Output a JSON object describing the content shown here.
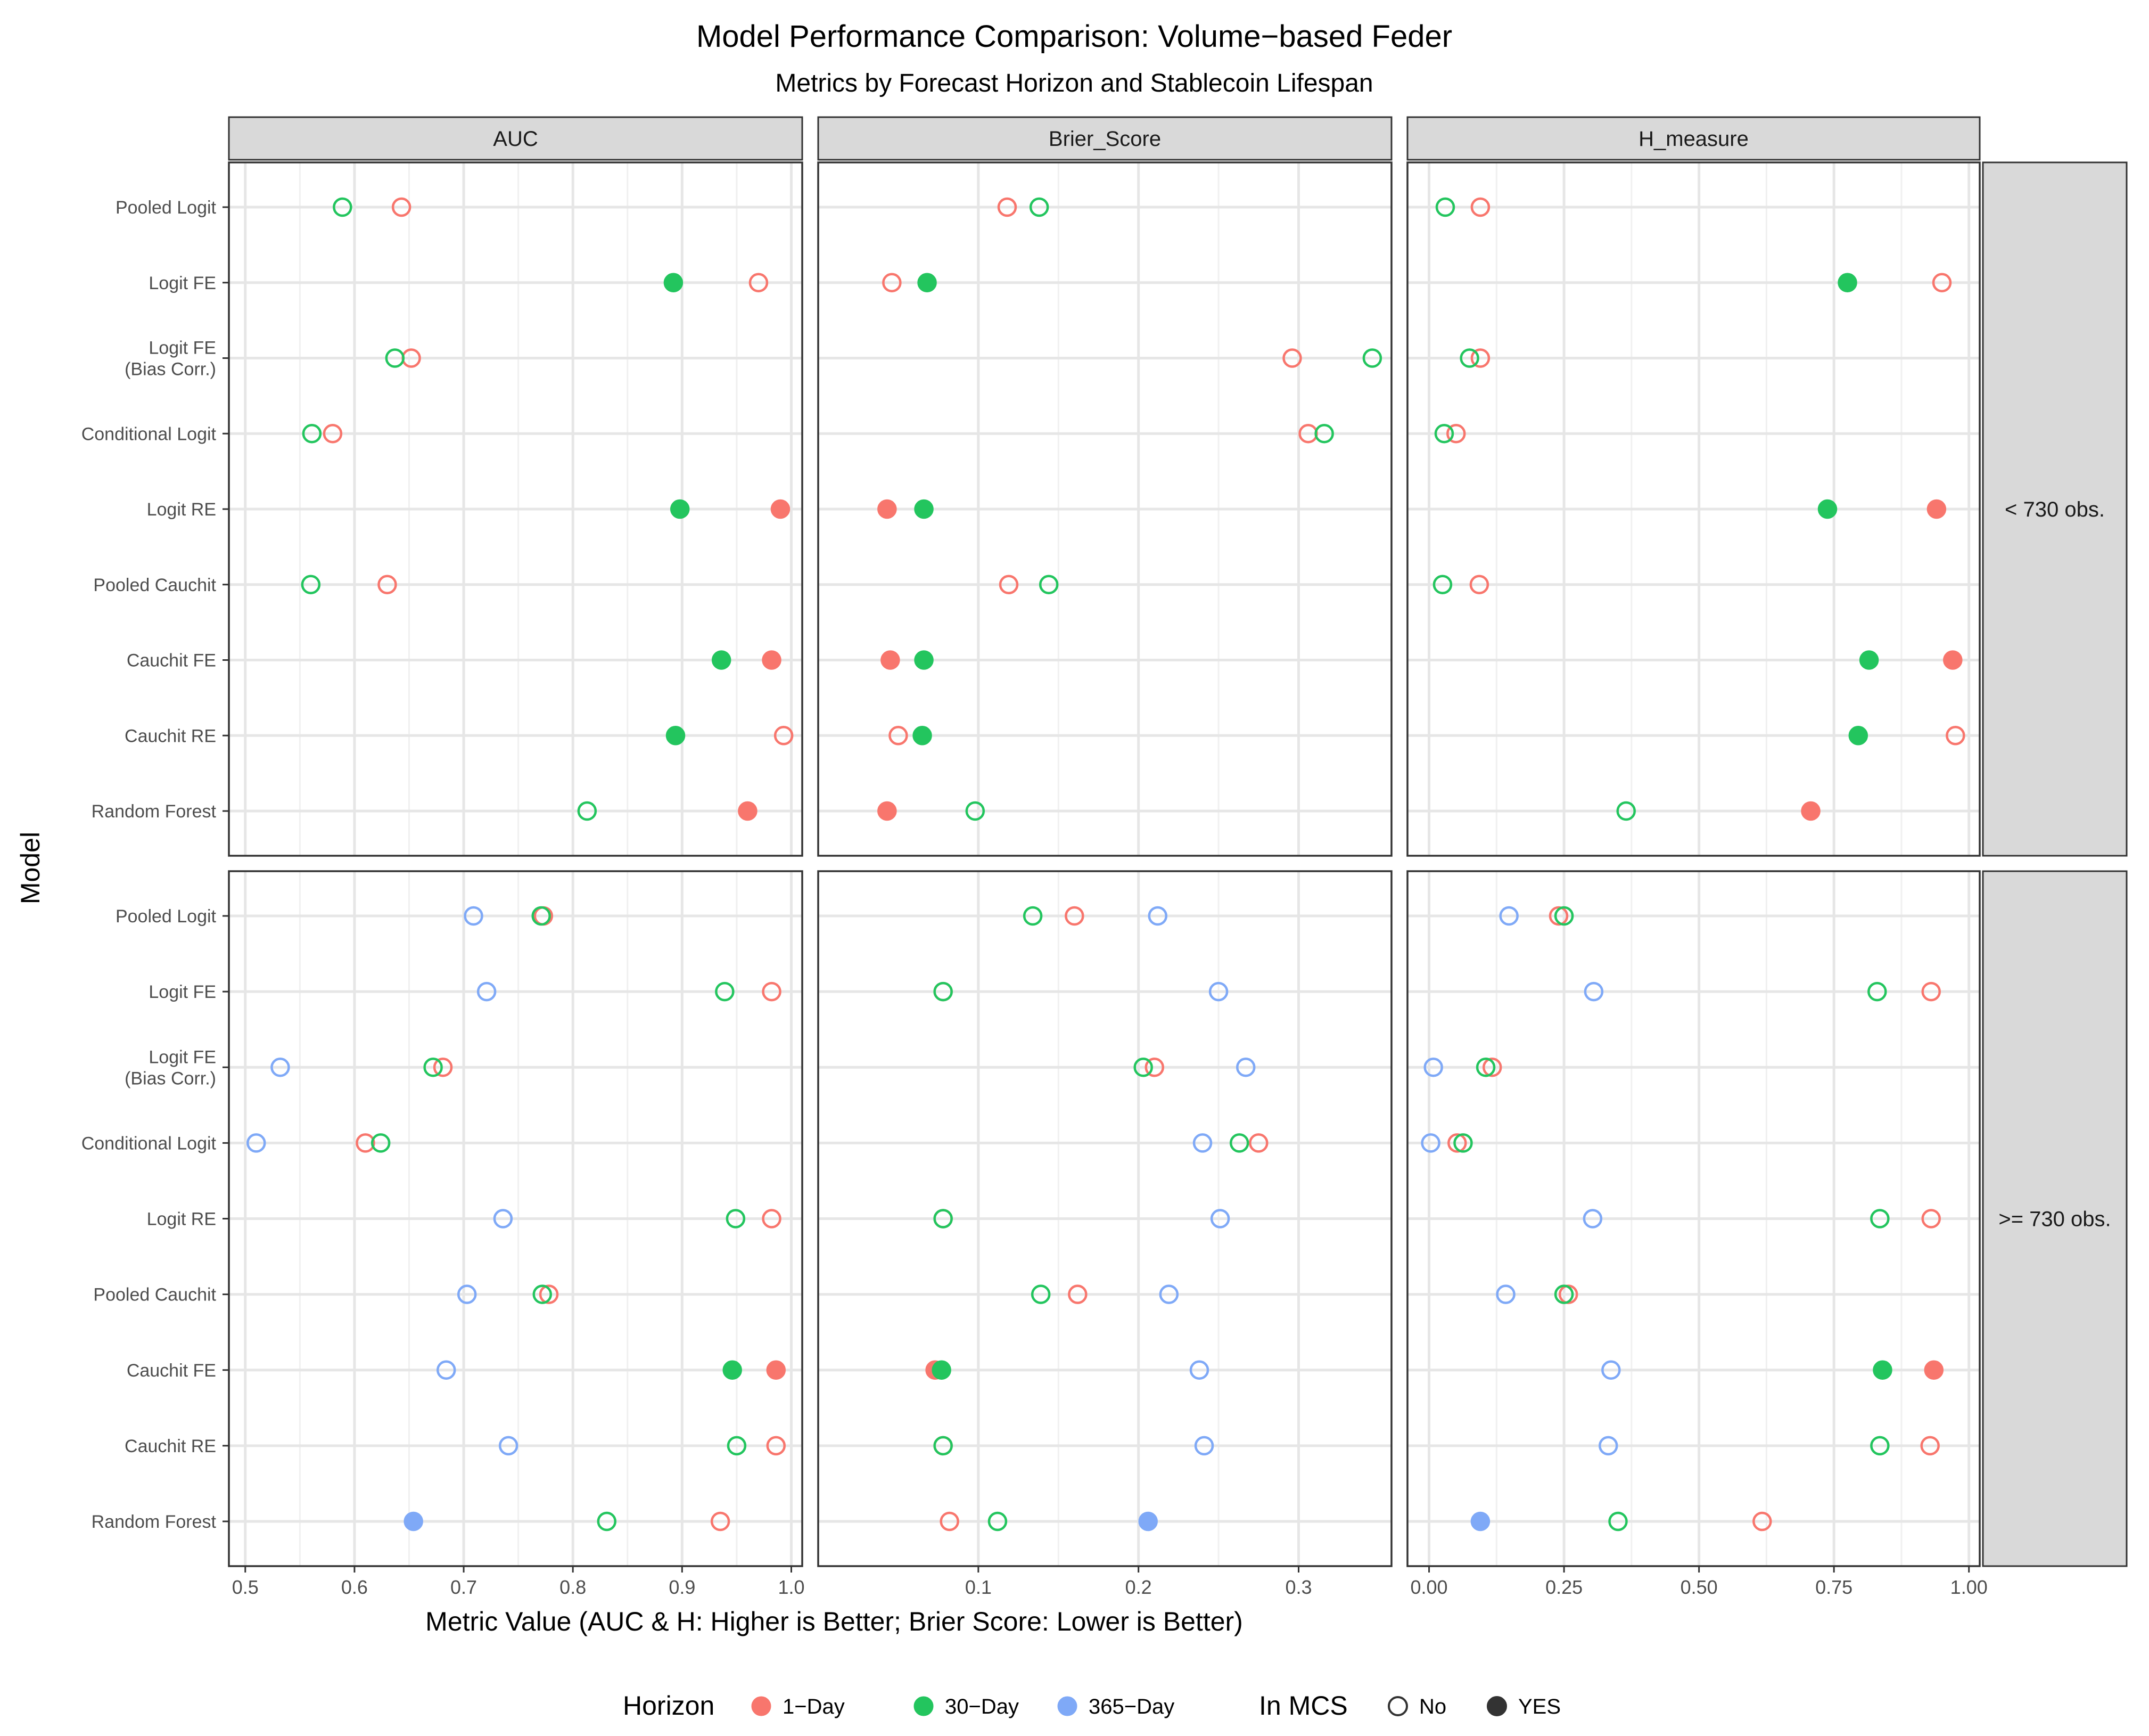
{
  "chart_data": {
    "type": "scatter",
    "title": "Model Performance Comparison: Volume−based Feder",
    "subtitle": "Metrics by Forecast Horizon and Stablecoin Lifespan",
    "xlabel": "Metric Value (AUC & H: Higher is Better; Brier Score: Lower is Better)",
    "ylabel": "Model",
    "grid": true,
    "legend_position": "bottom",
    "models": [
      "Pooled Logit",
      "Logit FE",
      "Logit FE\n(Bias Corr.)",
      "Conditional Logit",
      "Logit RE",
      "Pooled Cauchit",
      "Cauchit FE",
      "Cauchit RE",
      "Random Forest"
    ],
    "columns": [
      {
        "key": "auc",
        "label": "AUC",
        "xlim": [
          0.485,
          1.01
        ],
        "ticks": [
          0.5,
          0.6,
          0.7,
          0.8,
          0.9,
          1.0
        ],
        "tick_labels": [
          "0.5",
          "0.6",
          "0.7",
          "0.8",
          "0.9",
          "1.0"
        ]
      },
      {
        "key": "brier",
        "label": "Brier_Score",
        "xlim": [
          0.0,
          0.358
        ],
        "ticks": [
          0.1,
          0.2,
          0.3
        ],
        "tick_labels": [
          "0.1",
          "0.2",
          "0.3"
        ]
      },
      {
        "key": "h",
        "label": "H_measure",
        "xlim": [
          -0.04,
          1.02
        ],
        "ticks": [
          0.0,
          0.25,
          0.5,
          0.75,
          1.0
        ],
        "tick_labels": [
          "0.00",
          "0.25",
          "0.50",
          "0.75",
          "1.00"
        ]
      }
    ],
    "rows": [
      {
        "key": "short",
        "label": "< 730 obs."
      },
      {
        "key": "long",
        "label": ">= 730 obs."
      }
    ],
    "horizons": [
      {
        "name": "1−Day",
        "color": "#F8766D"
      },
      {
        "name": "30−Day",
        "color": "#23C55E"
      },
      {
        "name": "365−Day",
        "color": "#7FA9F7"
      }
    ],
    "mcs": [
      {
        "name": "No",
        "filled": false
      },
      {
        "name": "YES",
        "filled": true
      }
    ],
    "legend": {
      "horizon_title": "Horizon",
      "mcs_title": "In MCS"
    },
    "points": {
      "short": {
        "auc": [
          [
            [
              0.643,
              false
            ],
            [
              0.589,
              false
            ],
            null
          ],
          [
            [
              0.97,
              false
            ],
            [
              0.892,
              true
            ],
            null
          ],
          [
            [
              0.652,
              false
            ],
            [
              0.637,
              false
            ],
            null
          ],
          [
            [
              0.58,
              false
            ],
            [
              0.561,
              false
            ],
            null
          ],
          [
            [
              0.99,
              true
            ],
            [
              0.898,
              true
            ],
            null
          ],
          [
            [
              0.63,
              false
            ],
            [
              0.56,
              false
            ],
            null
          ],
          [
            [
              0.982,
              true
            ],
            [
              0.936,
              true
            ],
            null
          ],
          [
            [
              0.993,
              false
            ],
            [
              0.894,
              true
            ],
            null
          ],
          [
            [
              0.96,
              true
            ],
            [
              0.813,
              false
            ],
            null
          ]
        ],
        "brier": [
          [
            [
              0.118,
              false
            ],
            [
              0.138,
              false
            ],
            null
          ],
          [
            [
              0.046,
              false
            ],
            [
              0.068,
              true
            ],
            null
          ],
          [
            [
              0.296,
              false
            ],
            [
              0.346,
              false
            ],
            null
          ],
          [
            [
              0.306,
              false
            ],
            [
              0.316,
              false
            ],
            null
          ],
          [
            [
              0.043,
              true
            ],
            [
              0.066,
              true
            ],
            null
          ],
          [
            [
              0.119,
              false
            ],
            [
              0.144,
              false
            ],
            null
          ],
          [
            [
              0.045,
              true
            ],
            [
              0.066,
              true
            ],
            null
          ],
          [
            [
              0.05,
              false
            ],
            [
              0.065,
              true
            ],
            null
          ],
          [
            [
              0.043,
              true
            ],
            [
              0.098,
              false
            ],
            null
          ]
        ],
        "h": [
          [
            [
              0.095,
              false
            ],
            [
              0.03,
              false
            ],
            null
          ],
          [
            [
              0.95,
              false
            ],
            [
              0.775,
              true
            ],
            null
          ],
          [
            [
              0.095,
              false
            ],
            [
              0.075,
              false
            ],
            null
          ],
          [
            [
              0.05,
              false
            ],
            [
              0.028,
              false
            ],
            null
          ],
          [
            [
              0.94,
              true
            ],
            [
              0.738,
              true
            ],
            null
          ],
          [
            [
              0.093,
              false
            ],
            [
              0.025,
              false
            ],
            null
          ],
          [
            [
              0.97,
              true
            ],
            [
              0.815,
              true
            ],
            null
          ],
          [
            [
              0.975,
              false
            ],
            [
              0.795,
              true
            ],
            null
          ],
          [
            [
              0.707,
              true
            ],
            [
              0.365,
              false
            ],
            null
          ]
        ]
      },
      "long": {
        "auc": [
          [
            [
              0.773,
              false
            ],
            [
              0.771,
              false
            ],
            [
              0.709,
              false
            ]
          ],
          [
            [
              0.982,
              false
            ],
            [
              0.939,
              false
            ],
            [
              0.721,
              false
            ]
          ],
          [
            [
              0.681,
              false
            ],
            [
              0.672,
              false
            ],
            [
              0.532,
              false
            ]
          ],
          [
            [
              0.61,
              false
            ],
            [
              0.624,
              false
            ],
            [
              0.51,
              false
            ]
          ],
          [
            [
              0.982,
              false
            ],
            [
              0.949,
              false
            ],
            [
              0.736,
              false
            ]
          ],
          [
            [
              0.778,
              false
            ],
            [
              0.772,
              false
            ],
            [
              0.703,
              false
            ]
          ],
          [
            [
              0.986,
              true
            ],
            [
              0.946,
              true
            ],
            [
              0.684,
              false
            ]
          ],
          [
            [
              0.986,
              false
            ],
            [
              0.95,
              false
            ],
            [
              0.741,
              false
            ]
          ],
          [
            [
              0.935,
              false
            ],
            [
              0.831,
              false
            ],
            [
              0.654,
              true
            ]
          ]
        ],
        "brier": [
          [
            [
              0.16,
              false
            ],
            [
              0.134,
              false
            ],
            [
              0.212,
              false
            ]
          ],
          [
            [
              0.078,
              false
            ],
            [
              0.078,
              false
            ],
            [
              0.25,
              false
            ]
          ],
          [
            [
              0.21,
              false
            ],
            [
              0.203,
              false
            ],
            [
              0.267,
              false
            ]
          ],
          [
            [
              0.275,
              false
            ],
            [
              0.263,
              false
            ],
            [
              0.24,
              false
            ]
          ],
          [
            [
              0.078,
              false
            ],
            [
              0.078,
              false
            ],
            [
              0.251,
              false
            ]
          ],
          [
            [
              0.162,
              false
            ],
            [
              0.139,
              false
            ],
            [
              0.219,
              false
            ]
          ],
          [
            [
              0.073,
              true
            ],
            [
              0.077,
              true
            ],
            [
              0.238,
              false
            ]
          ],
          [
            [
              0.078,
              false
            ],
            [
              0.078,
              false
            ],
            [
              0.241,
              false
            ]
          ],
          [
            [
              0.082,
              false
            ],
            [
              0.112,
              false
            ],
            [
              0.206,
              true
            ]
          ]
        ],
        "h": [
          [
            [
              0.24,
              false
            ],
            [
              0.25,
              false
            ],
            [
              0.148,
              false
            ]
          ],
          [
            [
              0.93,
              false
            ],
            [
              0.83,
              false
            ],
            [
              0.305,
              false
            ]
          ],
          [
            [
              0.117,
              false
            ],
            [
              0.105,
              false
            ],
            [
              0.008,
              false
            ]
          ],
          [
            [
              0.052,
              false
            ],
            [
              0.063,
              false
            ],
            [
              0.003,
              false
            ]
          ],
          [
            [
              0.93,
              false
            ],
            [
              0.835,
              false
            ],
            [
              0.303,
              false
            ]
          ],
          [
            [
              0.258,
              false
            ],
            [
              0.25,
              false
            ],
            [
              0.142,
              false
            ]
          ],
          [
            [
              0.935,
              true
            ],
            [
              0.84,
              true
            ],
            [
              0.337,
              false
            ]
          ],
          [
            [
              0.928,
              false
            ],
            [
              0.835,
              false
            ],
            [
              0.332,
              false
            ]
          ],
          [
            [
              0.617,
              false
            ],
            [
              0.35,
              false
            ],
            [
              0.095,
              true
            ]
          ]
        ]
      }
    }
  }
}
